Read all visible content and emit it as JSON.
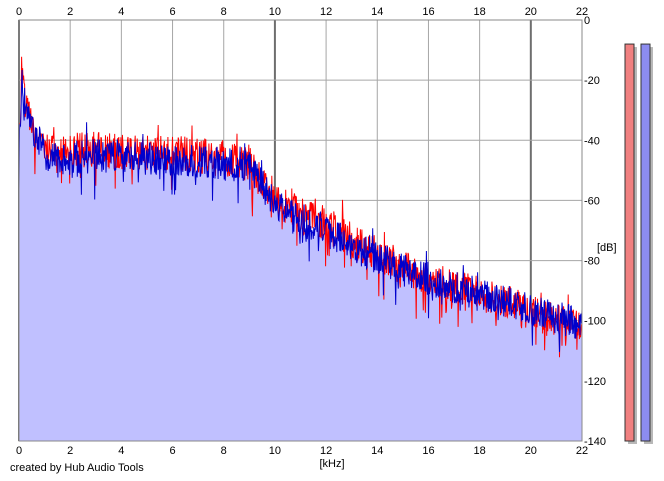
{
  "footer": {
    "credit": "created by Hub Audio Tools"
  },
  "colors": {
    "fill": "#c0c0ff",
    "series_blue": "#0000cc",
    "series_red": "#ff0000",
    "grid": "#a6a6a6",
    "major_grid": "#6e6e6e",
    "meter_red": "#f08080",
    "meter_blue": "#8c8cf0"
  },
  "chart_data": {
    "type": "line",
    "title": "",
    "xlabel": "[kHz]",
    "ylabel": "[dB]",
    "xlim": [
      0,
      22
    ],
    "ylim": [
      -140,
      0
    ],
    "x_ticks": [
      "0",
      "2",
      "4",
      "6",
      "8",
      "10",
      "12",
      "14",
      "16",
      "18",
      "20",
      "22"
    ],
    "y_ticks": [
      "0",
      "-20",
      "-40",
      "-60",
      "-80",
      "-100",
      "-120",
      "-140"
    ],
    "grid": true,
    "legend": "none",
    "filled_area": true,
    "series": [
      {
        "color": "#0000cc",
        "x": [
          0,
          0.1,
          0.2,
          0.5,
          1,
          1.5,
          2,
          2.5,
          3,
          4,
          5,
          6,
          7,
          8,
          9,
          9.5,
          10,
          11,
          12,
          13,
          14,
          15,
          16,
          17,
          18,
          19,
          20,
          21,
          22
        ],
        "y": [
          -46,
          -20,
          -28,
          -36,
          -44,
          -47,
          -46,
          -45,
          -45,
          -46,
          -46,
          -47,
          -47,
          -48,
          -49,
          -55,
          -62,
          -66,
          -70,
          -75,
          -79,
          -83,
          -86,
          -89,
          -91,
          -93,
          -96,
          -99,
          -101
        ]
      },
      {
        "color": "#ff0000",
        "x": [
          0,
          0.1,
          0.2,
          0.5,
          1,
          1.5,
          2,
          2.5,
          3,
          4,
          5,
          6,
          7,
          8,
          9,
          9.5,
          10,
          11,
          12,
          13,
          14,
          15,
          16,
          17,
          18,
          19,
          20,
          21,
          22
        ],
        "y": [
          -45,
          -18,
          -26,
          -35,
          -43,
          -45,
          -44,
          -43,
          -43,
          -44,
          -44,
          -44,
          -45,
          -46,
          -48,
          -54,
          -58,
          -64,
          -68,
          -73,
          -78,
          -82,
          -86,
          -89,
          -91,
          -94,
          -97,
          -100,
          -103
        ]
      }
    ],
    "level_meters": [
      {
        "color": "#f08080",
        "value_db": -8
      },
      {
        "color": "#8c8cf0",
        "value_db": -8
      }
    ]
  }
}
